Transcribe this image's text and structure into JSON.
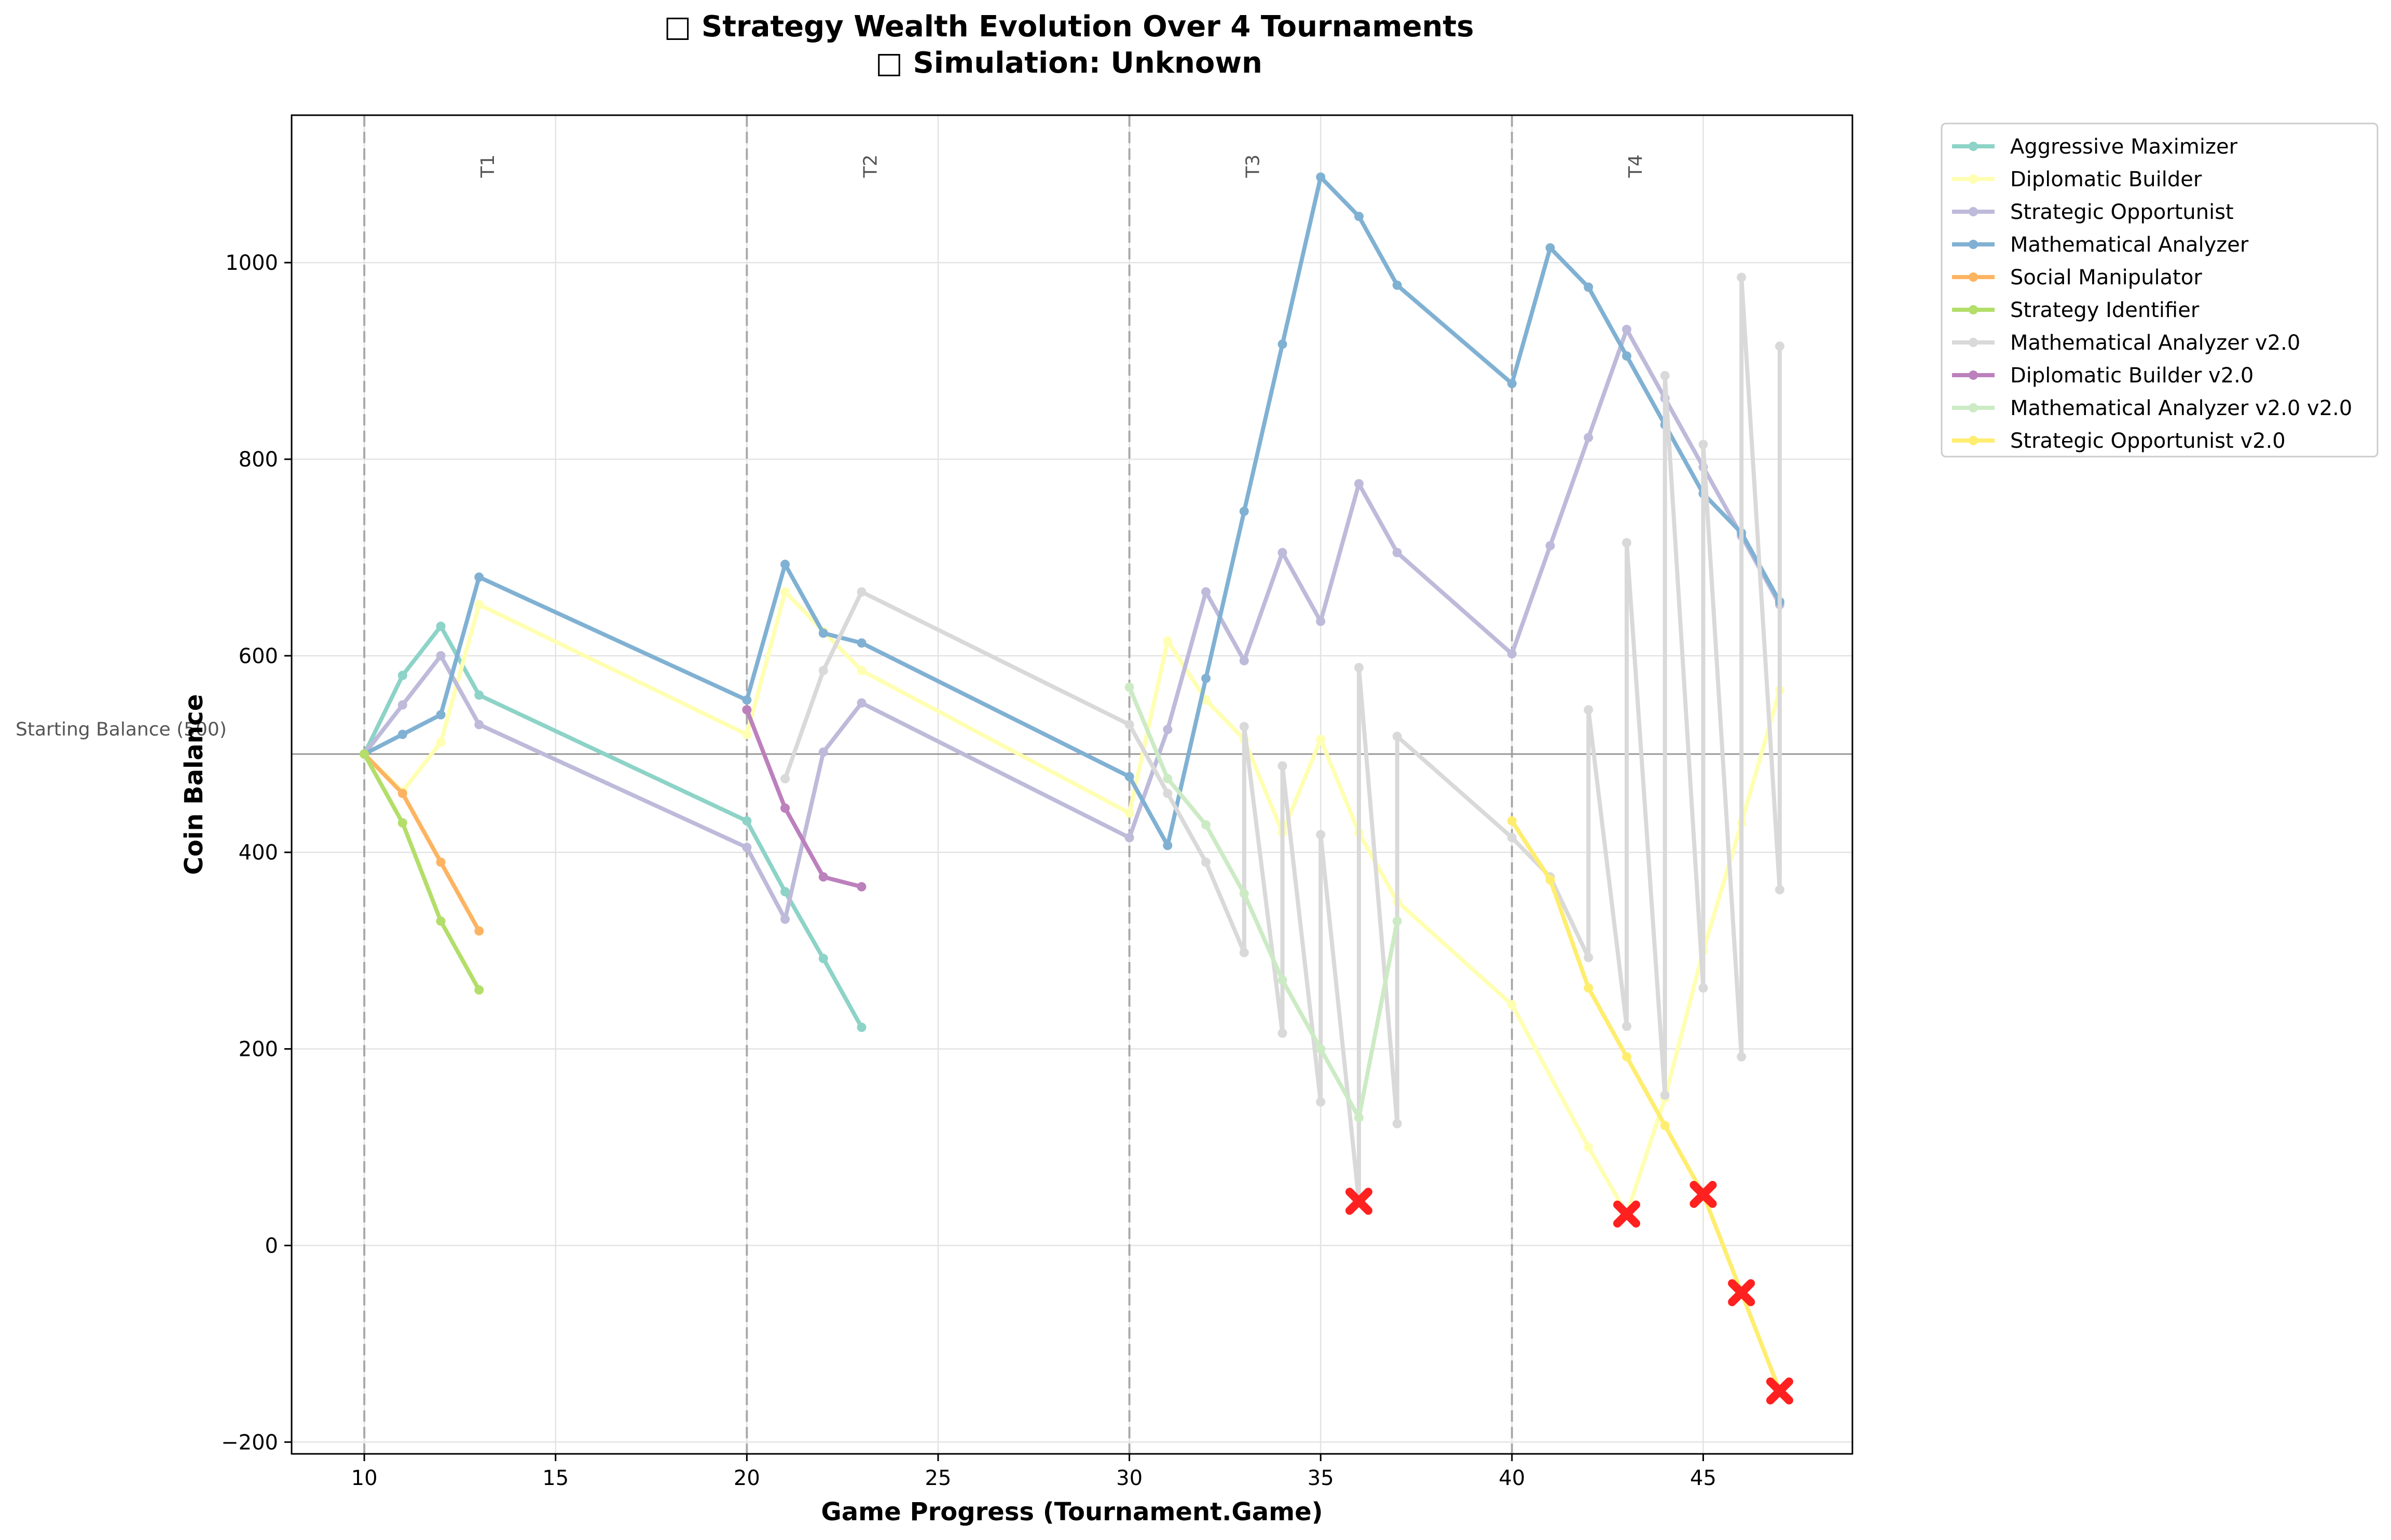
{
  "chart_data": {
    "type": "line",
    "title_line1": "□ Strategy Wealth Evolution Over 4 Tournaments",
    "title_line2": "□ Simulation: Unknown",
    "xlabel": "Game Progress (Tournament.Game)",
    "ylabel": "Coin Balance",
    "xlim": [
      8.1,
      48.9
    ],
    "ylim": [
      -212,
      1150
    ],
    "xticks": [
      10,
      15,
      20,
      25,
      30,
      35,
      40,
      45
    ],
    "yticks": [
      -200,
      0,
      200,
      400,
      600,
      800,
      1000
    ],
    "grid": true,
    "legend_position": "outside-right",
    "reference_line": {
      "y": 500,
      "label": "Starting Balance (500)",
      "color": "#808080"
    },
    "tournament_lines": [
      {
        "x": 10,
        "label": "T1"
      },
      {
        "x": 20,
        "label": "T2"
      },
      {
        "x": 30,
        "label": "T3"
      },
      {
        "x": 40,
        "label": "T4"
      }
    ],
    "bankrupt_markers": [
      {
        "x": 36,
        "y": 45
      },
      {
        "x": 43,
        "y": 32
      },
      {
        "x": 45,
        "y": 52
      },
      {
        "x": 46,
        "y": -48
      },
      {
        "x": 47,
        "y": -148
      }
    ],
    "bankrupt_color": "#ff2020",
    "series": [
      {
        "name": "Aggressive Maximizer",
        "color": "#8dd3c7",
        "x": [
          10,
          11,
          12,
          13,
          20,
          21,
          22,
          23
        ],
        "y": [
          500,
          580,
          630,
          560,
          432,
          360,
          292,
          222
        ]
      },
      {
        "name": "Diplomatic Builder",
        "color": "#ffffb3",
        "x": [
          10,
          11,
          12,
          13,
          20,
          21,
          22,
          23,
          30,
          31,
          32,
          33,
          34,
          35,
          36,
          37,
          40,
          42,
          43,
          44,
          45,
          46,
          47
        ],
        "y": [
          500,
          462,
          512,
          652,
          520,
          665,
          625,
          585,
          440,
          615,
          555,
          515,
          420,
          515,
          420,
          350,
          245,
          100,
          32,
          150,
          300,
          430,
          565
        ]
      },
      {
        "name": "Strategic Opportunist",
        "color": "#bebada",
        "x": [
          10,
          11,
          12,
          13,
          20,
          21,
          22,
          23,
          30,
          31,
          32,
          33,
          34,
          35,
          36,
          37,
          40,
          41,
          42,
          43,
          44,
          45,
          46,
          47
        ],
        "y": [
          500,
          550,
          600,
          530,
          405,
          332,
          502,
          552,
          415,
          525,
          665,
          595,
          705,
          635,
          775,
          705,
          602,
          712,
          822,
          932,
          862,
          792,
          722,
          652
        ]
      },
      {
        "name": "Mathematical Analyzer",
        "color": "#80b1d3",
        "x": [
          10,
          11,
          12,
          13,
          20,
          21,
          22,
          23,
          30,
          31,
          32,
          33,
          34,
          35,
          36,
          37,
          40,
          41,
          42,
          43,
          44,
          45,
          46,
          47
        ],
        "y": [
          500,
          520,
          540,
          680,
          555,
          693,
          623,
          613,
          477,
          407,
          577,
          747,
          917,
          1087,
          1047,
          977,
          877,
          1015,
          975,
          905,
          835,
          765,
          725,
          655
        ]
      },
      {
        "name": "Social Manipulator",
        "color": "#fdb462",
        "x": [
          10,
          11,
          12,
          13
        ],
        "y": [
          500,
          460,
          390,
          320
        ]
      },
      {
        "name": "Strategy Identifier",
        "color": "#b3de69",
        "x": [
          10,
          11,
          12,
          13
        ],
        "y": [
          500,
          430,
          330,
          260
        ]
      },
      {
        "name": "Mathematical Analyzer v2.0",
        "color": "#d9d9d9",
        "x": [
          21,
          22,
          23,
          30,
          31,
          32,
          33,
          33,
          34,
          34,
          35,
          35,
          36,
          36,
          37,
          37,
          40,
          41,
          42,
          42,
          43,
          43,
          44,
          44,
          45,
          45,
          46,
          46,
          47,
          47
        ],
        "y": [
          475,
          585,
          665,
          530,
          460,
          390,
          298,
          528,
          216,
          488,
          146,
          418,
          45,
          588,
          124,
          518,
          415,
          375,
          293,
          545,
          223,
          715,
          153,
          885,
          262,
          815,
          192,
          985,
          362,
          915
        ]
      },
      {
        "name": "Diplomatic Builder v2.0",
        "color": "#bc80bd",
        "x": [
          20,
          21,
          22,
          23
        ],
        "y": [
          545,
          445,
          375,
          365
        ]
      },
      {
        "name": "Mathematical Analyzer v2.0 v2.0",
        "color": "#ccebc5",
        "x": [
          30,
          31,
          32,
          33,
          34,
          35,
          36,
          37
        ],
        "y": [
          568,
          475,
          428,
          358,
          270,
          200,
          130,
          330
        ]
      },
      {
        "name": "Strategic Opportunist v2.0",
        "color": "#ffed6f",
        "x": [
          40,
          41,
          42,
          43,
          44,
          45,
          46,
          47
        ],
        "y": [
          432,
          372,
          262,
          192,
          122,
          52,
          -48,
          -148
        ]
      }
    ]
  }
}
